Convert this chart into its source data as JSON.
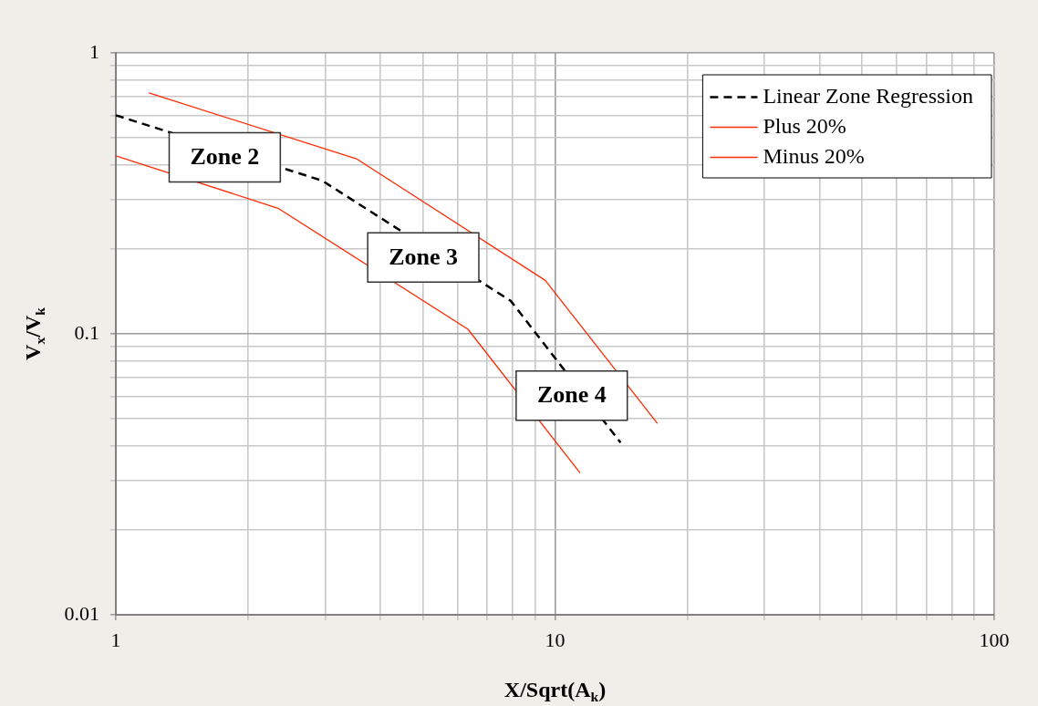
{
  "chart_data": {
    "type": "line",
    "xlabel": "X/Sqrt(A$_{k}$)",
    "ylabel": "V$_{x}$/V$_{k}$",
    "log": "xy",
    "grid": true,
    "legend": "top right",
    "xlim": [
      1,
      100
    ],
    "ylim": [
      0.01,
      1
    ],
    "xticks": [
      1,
      {
        "value": 2,
        "label": null
      },
      {
        "value": 3,
        "label": null
      },
      {
        "value": 4,
        "label": null
      },
      {
        "value": 5,
        "label": null
      },
      {
        "value": 6,
        "label": null
      },
      {
        "value": 7,
        "label": null
      },
      {
        "value": 8,
        "label": null
      },
      {
        "value": 9,
        "label": null
      },
      10,
      {
        "value": 20,
        "label": null
      },
      {
        "value": 30,
        "label": null
      },
      {
        "value": 40,
        "label": null
      },
      {
        "value": 50,
        "label": null
      },
      {
        "value": 60,
        "label": null
      },
      {
        "value": 70,
        "label": null
      },
      {
        "value": 80,
        "label": null
      },
      {
        "value": 90,
        "label": null
      },
      100
    ],
    "yticks": [
      0.01,
      {
        "value": 0.02,
        "label": null
      },
      {
        "value": 0.03,
        "label": null
      },
      {
        "value": 0.04,
        "label": null
      },
      {
        "value": 0.05,
        "label": null
      },
      {
        "value": 0.06,
        "label": null
      },
      {
        "value": 0.07,
        "label": null
      },
      {
        "value": 0.08,
        "label": null
      },
      {
        "value": 0.09,
        "label": null
      },
      0.1,
      {
        "value": 0.2,
        "label": null
      },
      {
        "value": 0.3,
        "label": null
      },
      {
        "value": 0.4,
        "label": null
      },
      {
        "value": 0.5,
        "label": null
      },
      {
        "value": 0.6,
        "label": null
      },
      {
        "value": 0.7,
        "label": null
      },
      {
        "value": 0.8,
        "label": null
      },
      {
        "value": 0.9,
        "label": null
      },
      1
    ],
    "series": [
      {
        "name": "Linear Zone Regression",
        "color": "#000000",
        "line_style": "dashed",
        "x": [
          1,
          2.95,
          7.93,
          14.1
        ],
        "values": [
          0.6,
          0.351,
          0.131,
          0.041
        ]
      },
      {
        "name": "Plus 20%",
        "color": "#ff2a00",
        "line_style": "solid",
        "x": [
          1.19,
          3.53,
          9.5,
          17.1
        ],
        "values": [
          0.72,
          0.42,
          0.155,
          0.048
        ]
      },
      {
        "name": "Minus 20%",
        "color": "#ff2a00",
        "line_style": "solid",
        "x": [
          1,
          2.34,
          6.33,
          11.4
        ],
        "values": [
          0.43,
          0.28,
          0.104,
          0.032
        ]
      }
    ],
    "annotations": [
      "Zone 2",
      "Zone 3",
      "Zone 4"
    ]
  }
}
